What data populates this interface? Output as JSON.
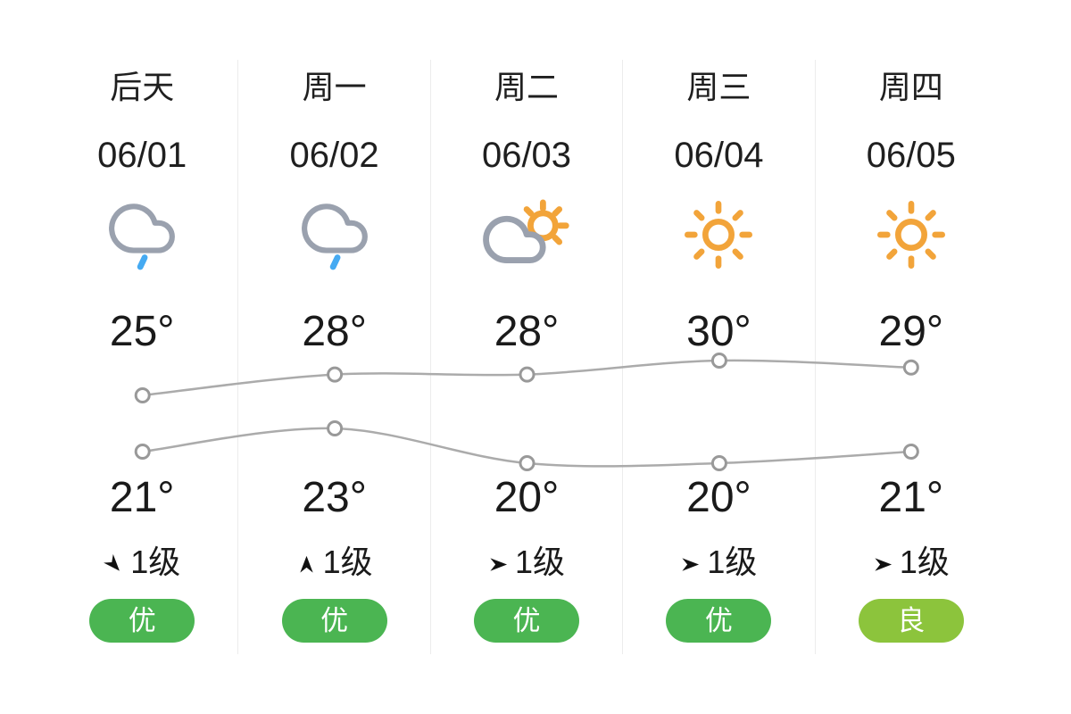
{
  "page": {
    "background": "#ffffff",
    "type": "weather-5day-forecast"
  },
  "colors": {
    "text": "#1a1a1a",
    "separator": "#ececec",
    "chart_line": "#ababab",
    "chart_marker_stroke": "#999999",
    "cloud_gray": "#9aa1ae",
    "rain_blue": "#45AAF2",
    "sun_orange": "#F2A43A",
    "aqi_excellent_green": "#4BB552",
    "aqi_good_green": "#8CC43C"
  },
  "forecast": {
    "days": [
      {
        "label": "后天",
        "date": "06/01",
        "icon": "light-rain",
        "high_label": "25°",
        "low_label": "21°",
        "wind": {
          "dir": "se",
          "level": "1级"
        },
        "aqi": {
          "text": "优",
          "grade": "excellent"
        }
      },
      {
        "label": "周一",
        "date": "06/02",
        "icon": "light-rain",
        "high_label": "28°",
        "low_label": "23°",
        "wind": {
          "dir": "n",
          "level": "1级"
        },
        "aqi": {
          "text": "优",
          "grade": "excellent"
        }
      },
      {
        "label": "周二",
        "date": "06/03",
        "icon": "partly-cloudy",
        "high_label": "28°",
        "low_label": "20°",
        "wind": {
          "dir": "e",
          "level": "1级"
        },
        "aqi": {
          "text": "优",
          "grade": "excellent"
        }
      },
      {
        "label": "周三",
        "date": "06/04",
        "icon": "sunny",
        "high_label": "30°",
        "low_label": "20°",
        "wind": {
          "dir": "e",
          "level": "1级"
        },
        "aqi": {
          "text": "优",
          "grade": "excellent"
        }
      },
      {
        "label": "周四",
        "date": "06/05",
        "icon": "sunny",
        "high_label": "29°",
        "low_label": "21°",
        "wind": {
          "dir": "e",
          "level": "1级"
        },
        "aqi": {
          "text": "良",
          "grade": "good"
        }
      }
    ]
  },
  "chart_data": {
    "type": "line",
    "categories": [
      "06/01",
      "06/02",
      "06/03",
      "06/04",
      "06/05"
    ],
    "series": [
      {
        "name": "high",
        "values": [
          25,
          28,
          28,
          30,
          29
        ]
      },
      {
        "name": "low",
        "values": [
          21,
          23,
          20,
          20,
          21
        ]
      }
    ],
    "unit": "°C",
    "marker": "open-circle",
    "line_color": "#ababab",
    "marker_stroke": "#999999",
    "grid": false,
    "legend": "none",
    "high_band_y": [
      404,
      443
    ],
    "low_band_y": [
      480,
      519
    ]
  }
}
